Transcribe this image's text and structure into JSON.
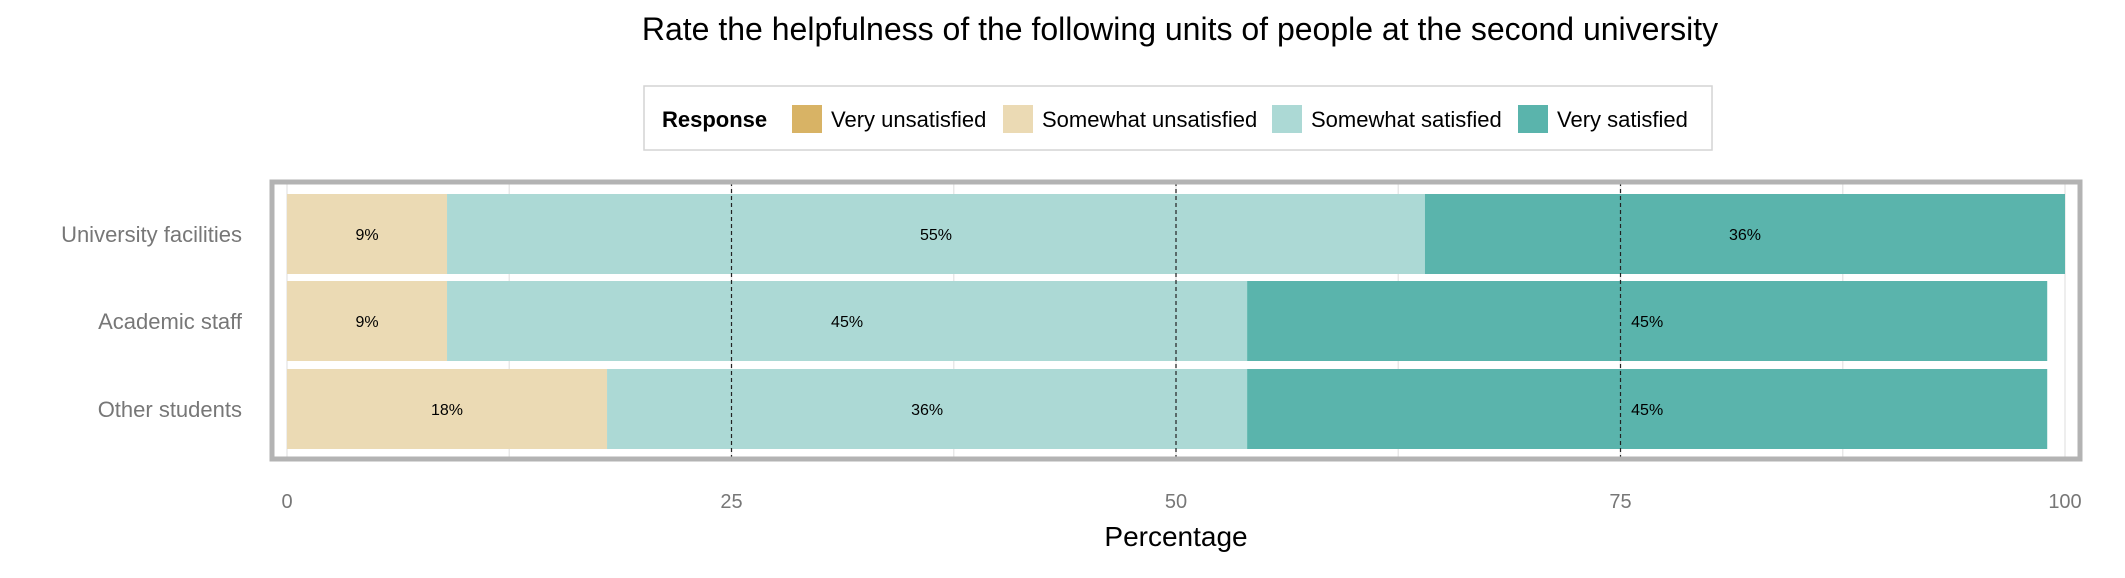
{
  "chart_data": {
    "type": "bar",
    "orientation": "horizontal",
    "stacked": true,
    "title": "Rate the helpfulness of the following units of people at the second university",
    "xlabel": "Percentage",
    "ylabel": "",
    "xlim": [
      0,
      100
    ],
    "x_ticks": [
      "0",
      "25",
      "50",
      "75",
      "100"
    ],
    "reference_lines": [
      25,
      50,
      75
    ],
    "legend": {
      "title": "Response",
      "position": "top",
      "entries": [
        "Very unsatisfied",
        "Somewhat unsatisfied",
        "Somewhat satisfied",
        "Very satisfied"
      ]
    },
    "categories": [
      "University facilities",
      "Academic staff",
      "Other students"
    ],
    "series": [
      {
        "name": "Very unsatisfied",
        "color": "#D8B365",
        "values": [
          0,
          0,
          0
        ],
        "labels": [
          "",
          "",
          ""
        ]
      },
      {
        "name": "Somewhat unsatisfied",
        "color": "#EBDAB4",
        "values": [
          9,
          9,
          18
        ],
        "labels": [
          "9%",
          "9%",
          "18%"
        ]
      },
      {
        "name": "Somewhat satisfied",
        "color": "#ACD9D5",
        "values": [
          55,
          45,
          36
        ],
        "labels": [
          "55%",
          "45%",
          "36%"
        ]
      },
      {
        "name": "Very satisfied",
        "color": "#5AB4AC",
        "values": [
          36,
          45,
          45
        ],
        "labels": [
          "36%",
          "45%",
          "45%"
        ]
      }
    ],
    "grid": true
  }
}
